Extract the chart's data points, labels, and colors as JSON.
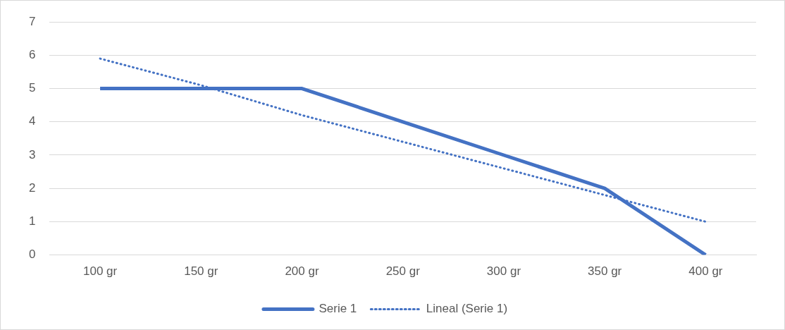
{
  "chart_data": {
    "type": "line",
    "categories": [
      "100 gr",
      "150 gr",
      "200 gr",
      "250 gr",
      "300 gr",
      "350 gr",
      "400 gr"
    ],
    "series": [
      {
        "name": "Serie 1",
        "color": "#4472c4",
        "values": [
          5,
          5,
          5,
          4,
          3,
          2,
          0
        ],
        "line_style": "solid"
      },
      {
        "name": "Lineal (Serie 1)",
        "color": "#4472c4",
        "values": [
          5.9,
          5.1,
          4.2,
          3.4,
          2.6,
          1.8,
          1.0
        ],
        "line_style": "dotted"
      }
    ],
    "ylim": [
      0,
      7
    ],
    "yticks": [
      0,
      1,
      2,
      3,
      4,
      5,
      6,
      7
    ],
    "grid": "y",
    "legend": "bottom",
    "marker": "none"
  }
}
